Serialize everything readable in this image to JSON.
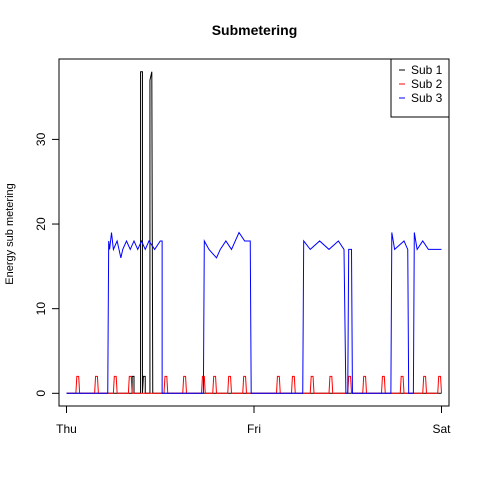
{
  "chart_data": {
    "type": "line",
    "title": "Submetering",
    "xlabel": "",
    "ylabel": "Energy sub metering",
    "x_tick_labels": [
      "Thu",
      "Fri",
      "Sat"
    ],
    "x_tick_values": [
      0,
      1,
      2
    ],
    "x_unit_note": "",
    "y_ticks": [
      0,
      10,
      20,
      30
    ],
    "xlim": [
      -0.04,
      2.04
    ],
    "ylim": [
      -1.5,
      39.5
    ],
    "grid": false,
    "legend_position": "top-right",
    "series": [
      {
        "name": "Sub 1",
        "color": "#000000",
        "points": [
          [
            0.0,
            0
          ],
          [
            0.35,
            0
          ],
          [
            0.35,
            2
          ],
          [
            0.36,
            2
          ],
          [
            0.36,
            0
          ],
          [
            0.395,
            0
          ],
          [
            0.395,
            38
          ],
          [
            0.405,
            38
          ],
          [
            0.405,
            0
          ],
          [
            0.41,
            2
          ],
          [
            0.42,
            2
          ],
          [
            0.42,
            0
          ],
          [
            0.445,
            0
          ],
          [
            0.445,
            37
          ],
          [
            0.455,
            38
          ],
          [
            0.46,
            0
          ],
          [
            0.47,
            0
          ],
          [
            2.0,
            0
          ]
        ]
      },
      {
        "name": "Sub 2",
        "color": "#ff0000",
        "points": [
          [
            0.0,
            0
          ],
          [
            0.05,
            0
          ],
          [
            0.055,
            2
          ],
          [
            0.065,
            2
          ],
          [
            0.07,
            0
          ],
          [
            0.15,
            0
          ],
          [
            0.155,
            2
          ],
          [
            0.165,
            2
          ],
          [
            0.17,
            0
          ],
          [
            0.25,
            0
          ],
          [
            0.255,
            2
          ],
          [
            0.265,
            2
          ],
          [
            0.27,
            0
          ],
          [
            0.33,
            0
          ],
          [
            0.335,
            2
          ],
          [
            0.345,
            2
          ],
          [
            0.35,
            0
          ],
          [
            0.52,
            0
          ],
          [
            0.525,
            2
          ],
          [
            0.535,
            2
          ],
          [
            0.54,
            0
          ],
          [
            0.62,
            0
          ],
          [
            0.625,
            2
          ],
          [
            0.635,
            2
          ],
          [
            0.64,
            0
          ],
          [
            0.72,
            0
          ],
          [
            0.725,
            2
          ],
          [
            0.735,
            2
          ],
          [
            0.74,
            0
          ],
          [
            0.78,
            0
          ],
          [
            0.785,
            2
          ],
          [
            0.795,
            2
          ],
          [
            0.8,
            0
          ],
          [
            0.86,
            0
          ],
          [
            0.865,
            2
          ],
          [
            0.875,
            2
          ],
          [
            0.88,
            0
          ],
          [
            0.94,
            0
          ],
          [
            0.945,
            2
          ],
          [
            0.955,
            2
          ],
          [
            0.96,
            0
          ],
          [
            1.12,
            0
          ],
          [
            1.125,
            2
          ],
          [
            1.135,
            2
          ],
          [
            1.14,
            0
          ],
          [
            1.2,
            0
          ],
          [
            1.205,
            2
          ],
          [
            1.215,
            2
          ],
          [
            1.22,
            0
          ],
          [
            1.3,
            0
          ],
          [
            1.305,
            2
          ],
          [
            1.315,
            2
          ],
          [
            1.32,
            0
          ],
          [
            1.4,
            0
          ],
          [
            1.405,
            2
          ],
          [
            1.415,
            2
          ],
          [
            1.42,
            0
          ],
          [
            1.5,
            0
          ],
          [
            1.505,
            2
          ],
          [
            1.515,
            2
          ],
          [
            1.52,
            0
          ],
          [
            1.58,
            0
          ],
          [
            1.585,
            2
          ],
          [
            1.595,
            2
          ],
          [
            1.6,
            0
          ],
          [
            1.68,
            0
          ],
          [
            1.685,
            2
          ],
          [
            1.695,
            2
          ],
          [
            1.7,
            0
          ],
          [
            1.78,
            0
          ],
          [
            1.785,
            2
          ],
          [
            1.795,
            2
          ],
          [
            1.8,
            0
          ],
          [
            1.9,
            0
          ],
          [
            1.905,
            2
          ],
          [
            1.915,
            2
          ],
          [
            1.92,
            0
          ],
          [
            1.98,
            0
          ],
          [
            1.985,
            2
          ],
          [
            1.995,
            2
          ],
          [
            2.0,
            0
          ]
        ]
      },
      {
        "name": "Sub 3",
        "color": "#0000ff",
        "points": [
          [
            0.0,
            0
          ],
          [
            0.22,
            0
          ],
          [
            0.225,
            18
          ],
          [
            0.23,
            17
          ],
          [
            0.24,
            19
          ],
          [
            0.25,
            17
          ],
          [
            0.27,
            18
          ],
          [
            0.28,
            17
          ],
          [
            0.29,
            16
          ],
          [
            0.3,
            17
          ],
          [
            0.32,
            18
          ],
          [
            0.34,
            17
          ],
          [
            0.36,
            18
          ],
          [
            0.38,
            17
          ],
          [
            0.4,
            18
          ],
          [
            0.42,
            17
          ],
          [
            0.44,
            18
          ],
          [
            0.47,
            17
          ],
          [
            0.5,
            18
          ],
          [
            0.51,
            18
          ],
          [
            0.51,
            0
          ],
          [
            0.73,
            0
          ],
          [
            0.735,
            18
          ],
          [
            0.76,
            17
          ],
          [
            0.8,
            16
          ],
          [
            0.82,
            17
          ],
          [
            0.85,
            18
          ],
          [
            0.88,
            17
          ],
          [
            0.92,
            19
          ],
          [
            0.95,
            18
          ],
          [
            0.98,
            18
          ],
          [
            0.985,
            0
          ],
          [
            1.26,
            0
          ],
          [
            1.265,
            18
          ],
          [
            1.3,
            17
          ],
          [
            1.35,
            18
          ],
          [
            1.4,
            17
          ],
          [
            1.45,
            18
          ],
          [
            1.48,
            17
          ],
          [
            1.49,
            0
          ],
          [
            1.5,
            0
          ],
          [
            1.505,
            17
          ],
          [
            1.52,
            17
          ],
          [
            1.525,
            0
          ],
          [
            1.73,
            0
          ],
          [
            1.735,
            19
          ],
          [
            1.75,
            17
          ],
          [
            1.8,
            18
          ],
          [
            1.82,
            17
          ],
          [
            1.825,
            0
          ],
          [
            1.85,
            0
          ],
          [
            1.855,
            19
          ],
          [
            1.87,
            17
          ],
          [
            1.9,
            18
          ],
          [
            1.93,
            17
          ],
          [
            1.97,
            17
          ],
          [
            2.0,
            17
          ]
        ]
      }
    ]
  }
}
